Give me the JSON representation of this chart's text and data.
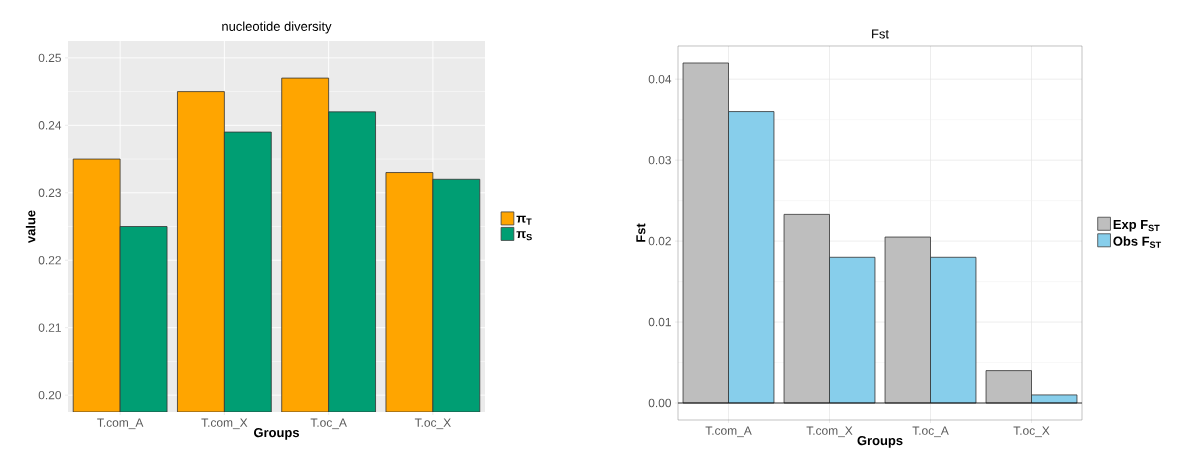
{
  "chart_data": [
    {
      "type": "bar",
      "title": "nucleotide diversity",
      "xlabel": "Groups",
      "ylabel": "value",
      "categories": [
        "T.com_A",
        "T.com_X",
        "T.oc_A",
        "T.oc_X"
      ],
      "series": [
        {
          "name": "π$_{T}$",
          "color": "#ffa500",
          "values": [
            0.235,
            0.245,
            0.247,
            0.233
          ]
        },
        {
          "name": "π$_{S}$",
          "color": "#009e73",
          "values": [
            0.225,
            0.239,
            0.242,
            0.232
          ]
        }
      ],
      "ylim": [
        0.1975,
        0.2525
      ],
      "yticks": [
        {
          "value": 0.2,
          "label": "0.20"
        },
        0.21,
        0.22,
        0.23,
        0.24,
        0.25
      ],
      "grid": true,
      "legend": "right"
    },
    {
      "type": "bar",
      "title": "Fst",
      "xlabel": "Groups",
      "ylabel": "Fst",
      "categories": [
        "T.com_A",
        "T.com_X",
        "T.oc_A",
        "T.oc_X"
      ],
      "series": [
        {
          "name": "Exp F$_{ST}$",
          "color": "#bebebe",
          "values": [
            0.042,
            0.0233,
            0.0205,
            0.004
          ]
        },
        {
          "name": "Obs F$_{ST}$",
          "color": "#87ceeb",
          "values": [
            0.036,
            0.018,
            0.018,
            0.001
          ]
        }
      ],
      "ylim": [
        -0.0021,
        0.0441
      ],
      "yticks": [
        {
          "value": 0,
          "label": "0.00"
        },
        0.01,
        0.02,
        0.03,
        0.04
      ],
      "ref_lines": [
        {
          "axis": "y",
          "value": 0
        }
      ],
      "grid": true,
      "legend": "right"
    }
  ]
}
